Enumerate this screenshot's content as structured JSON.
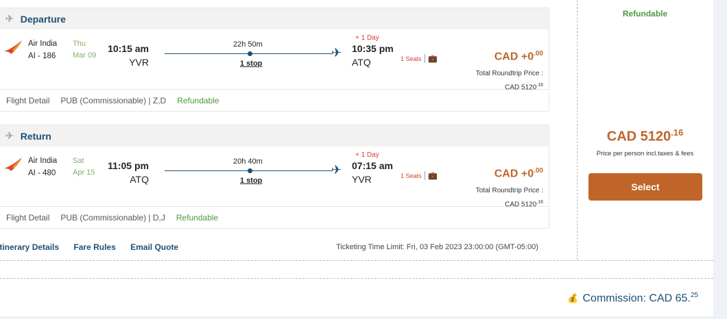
{
  "segments": [
    {
      "title": "Departure",
      "airline": "Air India",
      "flight": "AI - 186",
      "day": "Thu",
      "date": "Mar 09",
      "dep_time": "10:15 am",
      "dep_code": "YVR",
      "duration": "22h 50m",
      "stops": "1 stop",
      "plus_day": "+ 1 Day",
      "arr_time": "10:35 pm",
      "arr_code": "ATQ",
      "seats": "1 Seats",
      "price_main": "CAD +0",
      "price_cents": ".00",
      "total_label": "Total Roundtrip Price :",
      "total_main": "CAD 5120",
      "total_cents": ".16",
      "detail_link": "Flight Detail",
      "fare_class": "PUB (Commissionable) | Z,D",
      "refundable": "Refundable"
    },
    {
      "title": "Return",
      "airline": "Air India",
      "flight": "AI - 480",
      "day": "Sat",
      "date": "Apr 15",
      "dep_time": "11:05 pm",
      "dep_code": "ATQ",
      "duration": "20h 40m",
      "stops": "1 stop",
      "plus_day": "+ 1 Day",
      "arr_time": "07:15 am",
      "arr_code": "YVR",
      "seats": "1 Seats",
      "price_main": "CAD +0",
      "price_cents": ".00",
      "total_label": "Total Roundtrip Price :",
      "total_main": "CAD 5120",
      "total_cents": ".16",
      "detail_link": "Flight Detail",
      "fare_class": "PUB (Commissionable) | D,J",
      "refundable": "Refundable"
    }
  ],
  "links": {
    "itinerary": "Itinerary Details",
    "fare_rules": "Fare Rules",
    "email_quote": "Email Quote"
  },
  "ticketing_limit": "Ticketing Time Limit: Fri, 03 Feb 2023 23:00:00 (GMT-05:00)",
  "side": {
    "refundable": "Refundable",
    "price_main": "CAD 5120",
    "price_cents": ".16",
    "price_note": "Price per person incl.taxes & fees",
    "select": "Select"
  },
  "commission": {
    "label": "Commission: CAD 65.",
    "cents": "25"
  },
  "colors": {
    "accent": "#c0652a",
    "primary": "#1d4f73",
    "green": "#4a9a3c"
  }
}
